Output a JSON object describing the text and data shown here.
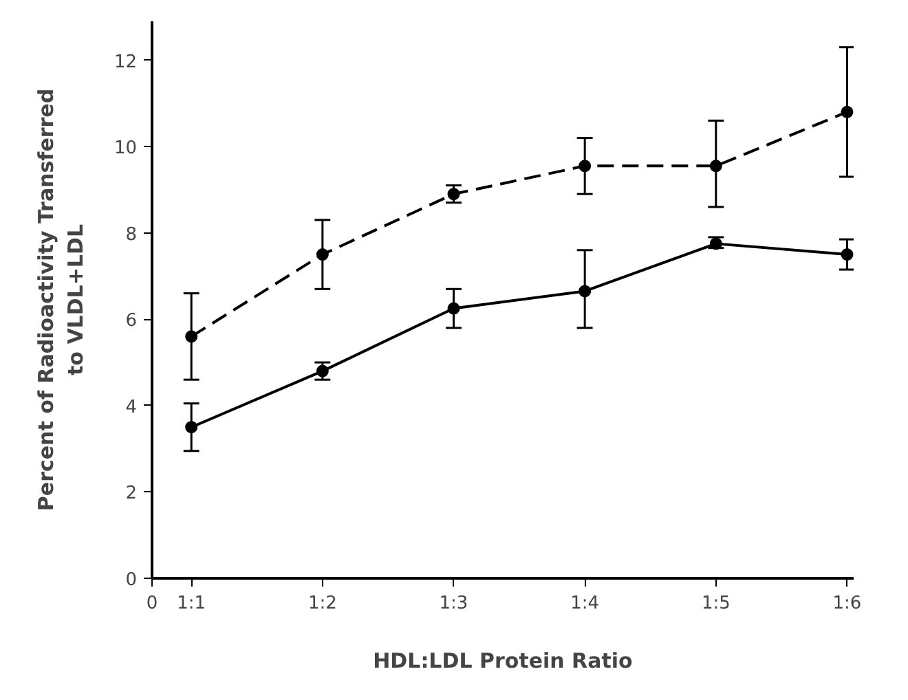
{
  "chart_data": {
    "type": "line",
    "xlabel": "HDL:LDL Protein Ratio",
    "ylabel": "Percent of Radioactivity Transferred\nto VLDL+LDL",
    "categories": [
      "1:1",
      "1:2",
      "1:3",
      "1:4",
      "1:5",
      "1:6"
    ],
    "ylim": [
      0,
      12.9
    ],
    "yticks": [
      0,
      2,
      4,
      6,
      8,
      10,
      12
    ],
    "grid": false,
    "marker": "circle",
    "annotations": [
      "0"
    ],
    "series": [
      {
        "color": "#000000",
        "line_style": "dashed",
        "values": [
          5.6,
          7.5,
          8.9,
          9.55,
          9.55,
          10.8
        ],
        "errors": [
          [
            4.6,
            6.6
          ],
          [
            6.7,
            8.3
          ],
          [
            8.7,
            9.1
          ],
          [
            8.9,
            10.2
          ],
          [
            8.6,
            10.6
          ],
          [
            9.3,
            12.3
          ]
        ]
      },
      {
        "color": "#000000",
        "line_style": "solid",
        "values": [
          3.5,
          4.8,
          6.25,
          6.65,
          7.75,
          7.5
        ],
        "errors": [
          [
            2.95,
            4.05
          ],
          [
            4.6,
            5.0
          ],
          [
            5.8,
            6.7
          ],
          [
            5.8,
            7.6
          ],
          [
            7.65,
            7.9
          ],
          [
            7.15,
            7.85
          ]
        ]
      }
    ]
  }
}
